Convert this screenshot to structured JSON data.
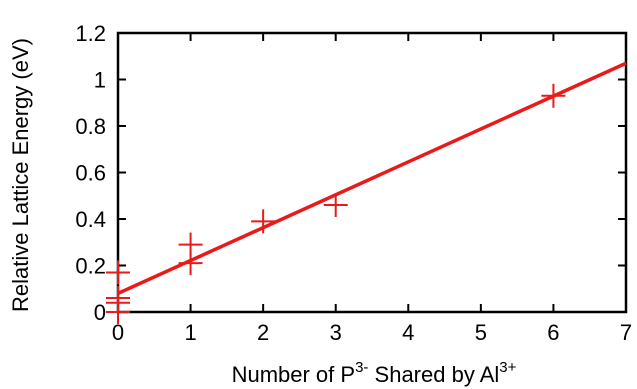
{
  "chart_data": {
    "type": "scatter",
    "xlabel": {
      "parts": [
        "Number of P",
        "3-",
        " Shared by Al",
        "3+"
      ]
    },
    "ylabel": "Relative Lattice Energy (eV)",
    "xlim": [
      0,
      7
    ],
    "ylim": [
      0,
      1.2
    ],
    "x_ticks": [
      "0",
      "1",
      "2",
      "3",
      "4",
      "5",
      "6",
      "7"
    ],
    "y_ticks": [
      "0",
      "0.2",
      "0.4",
      "0.6",
      "0.8",
      "1",
      "1.2"
    ],
    "grid": false,
    "legend": "none",
    "series": [
      {
        "kind": "points",
        "marker": "plus",
        "x": [
          0,
          0,
          0,
          0,
          1,
          1,
          2,
          3,
          6
        ],
        "y": [
          0.0,
          0.04,
          0.06,
          0.17,
          0.21,
          0.29,
          0.39,
          0.46,
          0.93
        ]
      },
      {
        "kind": "fit-line",
        "x": [
          0,
          7
        ],
        "y": [
          0.08,
          1.07
        ]
      }
    ],
    "colors": {
      "markers": "#e81a1a",
      "line": "#e81a1a",
      "axes": "#000000"
    }
  }
}
